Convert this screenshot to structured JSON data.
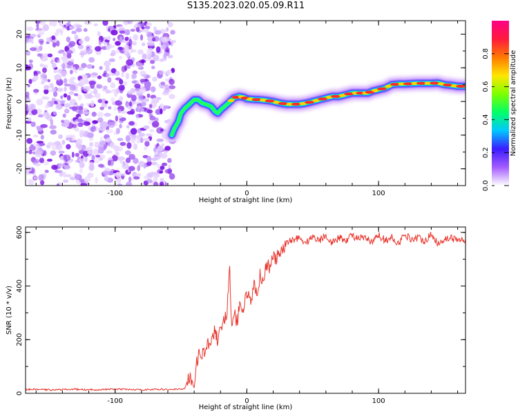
{
  "title": "S135.2023.020.05.09.R11",
  "chart_data": [
    {
      "type": "heatmap",
      "title": "",
      "xlabel": "Height of straight line (km)",
      "ylabel": "Frequency (Hz)",
      "xlim": [
        -168,
        166
      ],
      "ylim": [
        -25,
        24
      ],
      "xticks": [
        -100,
        0,
        100
      ],
      "yticks": [
        -20,
        -10,
        0,
        10,
        20
      ],
      "noise_region_x": [
        -168,
        -56
      ],
      "ridge_line": {
        "x": [
          -57,
          -55,
          -52,
          -50,
          -47,
          -44,
          -40,
          -37,
          -34,
          -30,
          -27,
          -24,
          -22,
          -20,
          -17,
          -14,
          -10,
          -6,
          -2,
          0,
          5,
          10,
          15,
          20,
          25,
          30,
          35,
          40,
          45,
          50,
          55,
          60,
          65,
          70,
          75,
          80,
          85,
          88,
          92,
          95,
          100,
          105,
          110,
          115,
          120,
          125,
          130,
          135,
          140,
          145,
          150,
          155,
          160,
          165
        ],
        "y": [
          -10,
          -8,
          -6,
          -3.5,
          -2,
          -1,
          0.5,
          0.5,
          -0.5,
          -1,
          -1.5,
          -3,
          -3.5,
          -2.5,
          -1.5,
          -0.5,
          1,
          1.5,
          1.2,
          0.8,
          0.6,
          0.5,
          0.3,
          0,
          -0.5,
          -0.8,
          -0.8,
          -0.8,
          -0.5,
          0,
          0.5,
          1,
          1.5,
          1.5,
          2,
          2.5,
          2.5,
          2.5,
          2.5,
          3,
          3.5,
          4,
          5,
          5.2,
          5.2,
          5.3,
          5.4,
          5.4,
          5.4,
          5.5,
          5,
          4.8,
          4.5,
          4.5
        ]
      },
      "colorbar": {
        "label": "Normalized spectral amplitude",
        "range": [
          0,
          1
        ],
        "ticks": [
          0.0,
          0.2,
          0.4,
          0.6,
          0.8
        ],
        "tick_labels": [
          "0.0",
          "0.2",
          "0.4",
          "0.6",
          "0.8"
        ],
        "colormap": [
          "#ffffff",
          "#a45cff",
          "#3b1cff",
          "#00c8ff",
          "#00ff66",
          "#7dff00",
          "#ffe600",
          "#ff7a00",
          "#ff1a3c",
          "#ff0088"
        ]
      }
    },
    {
      "type": "line",
      "title": "",
      "xlabel": "Height of straight line (km)",
      "ylabel": "SNR (10 * v/v)",
      "xlim": [
        -168,
        166
      ],
      "ylim": [
        0,
        620
      ],
      "xticks": [
        -100,
        0,
        100
      ],
      "yticks": [
        0,
        200,
        400,
        600
      ],
      "series": [
        {
          "color": "#e8332a",
          "x": [
            -168,
            -160,
            -150,
            -140,
            -130,
            -120,
            -110,
            -100,
            -90,
            -80,
            -70,
            -60,
            -50,
            -47,
            -45,
            -43,
            -40,
            -38,
            -35,
            -33,
            -30,
            -28,
            -25,
            -22,
            -20,
            -18,
            -15,
            -13,
            -12,
            -11,
            -10,
            -8,
            -5,
            -3,
            0,
            3,
            5,
            8,
            10,
            12,
            15,
            18,
            20,
            22,
            25,
            28,
            30,
            35,
            40,
            45,
            50,
            55,
            60,
            65,
            70,
            75,
            80,
            85,
            90,
            95,
            100,
            105,
            110,
            115,
            120,
            125,
            130,
            135,
            140,
            145,
            150,
            155,
            160,
            166
          ],
          "y": [
            14,
            15,
            13,
            14,
            15,
            13,
            14,
            15,
            14,
            13,
            15,
            14,
            15,
            20,
            45,
            70,
            20,
            110,
            160,
            140,
            200,
            180,
            230,
            200,
            250,
            270,
            300,
            480,
            280,
            230,
            310,
            260,
            330,
            290,
            380,
            350,
            400,
            380,
            440,
            420,
            480,
            470,
            510,
            500,
            520,
            530,
            560,
            575,
            580,
            560,
            585,
            570,
            590,
            560,
            580,
            570,
            590,
            575,
            580,
            560,
            590,
            570,
            580,
            560,
            590,
            575,
            580,
            570,
            590,
            560,
            575,
            580,
            570,
            575
          ]
        }
      ]
    }
  ]
}
